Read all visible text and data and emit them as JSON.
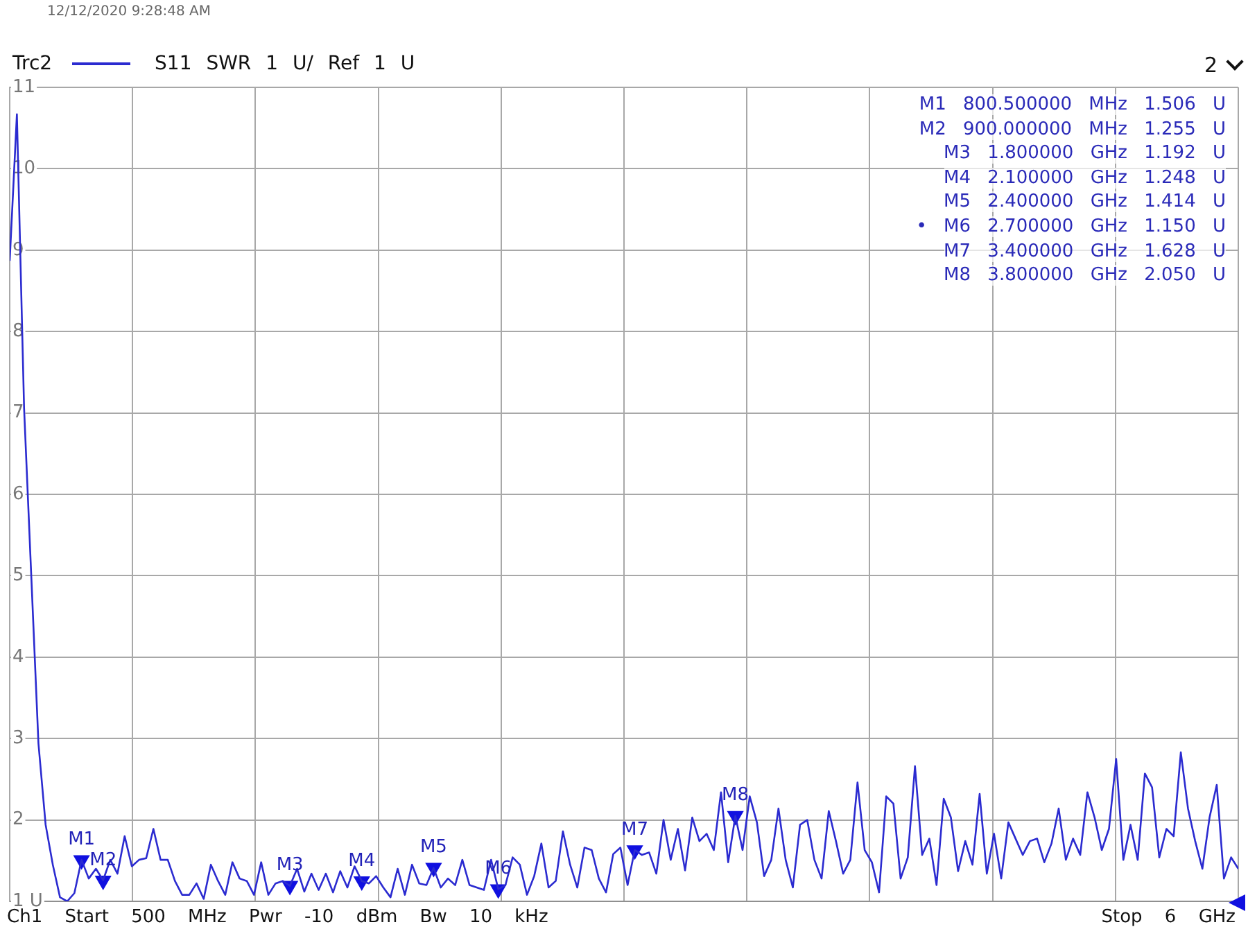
{
  "chart_data": {
    "type": "line",
    "subtitle": "S11 SWR 1 U/ Ref 1 U",
    "categories": [
      null,
      null,
      null,
      null,
      null,
      null,
      null,
      null,
      null,
      null,
      null,
      null,
      null,
      null,
      null,
      null,
      null,
      null,
      null,
      null,
      null,
      null,
      null,
      null,
      null,
      null,
      null,
      null,
      null,
      null,
      null,
      null,
      null,
      null,
      null,
      null,
      null,
      null,
      null,
      null,
      null,
      null,
      null,
      null,
      null,
      null,
      null,
      null,
      null,
      null,
      null,
      null,
      null,
      null,
      null,
      null,
      null,
      null,
      null,
      null,
      null,
      null,
      null,
      null,
      null,
      null,
      null,
      null,
      null,
      null,
      null,
      null,
      null,
      null,
      null,
      null,
      null,
      null,
      null,
      null,
      null,
      null,
      null,
      null,
      null,
      null,
      null,
      null,
      null,
      null,
      null,
      null,
      null,
      null,
      null,
      null,
      null,
      null,
      null,
      null,
      null,
      null,
      null,
      null,
      null,
      null,
      null,
      null,
      null,
      null,
      null,
      null,
      null,
      null,
      null,
      null,
      null,
      null,
      null,
      null,
      null,
      null,
      null,
      null,
      null,
      null,
      null,
      null,
      null,
      null,
      null,
      null,
      null,
      null,
      null,
      null,
      null,
      null,
      null,
      null,
      null,
      null,
      null,
      null,
      null,
      null,
      null,
      null,
      null,
      null,
      null,
      null,
      null,
      null,
      null,
      null,
      null,
      null,
      null,
      null,
      null,
      null,
      null,
      null,
      null,
      null,
      null,
      null,
      null,
      null,
      null,
      null
    ],
    "series": [
      {
        "name": "Trc2",
        "color": "#2b2bd0",
        "values": [
          8.87,
          10.67,
          7.06,
          5.0,
          2.94,
          1.94,
          1.45,
          1.05,
          1.0,
          1.1,
          1.51,
          1.28,
          1.4,
          1.26,
          1.51,
          1.34,
          1.8,
          1.43,
          1.51,
          1.53,
          1.89,
          1.51,
          1.51,
          1.25,
          1.08,
          1.08,
          1.22,
          1.03,
          1.45,
          1.25,
          1.08,
          1.48,
          1.28,
          1.25,
          1.08,
          1.48,
          1.08,
          1.22,
          1.25,
          1.19,
          1.4,
          1.12,
          1.34,
          1.14,
          1.34,
          1.11,
          1.37,
          1.17,
          1.43,
          1.25,
          1.22,
          1.31,
          1.17,
          1.05,
          1.4,
          1.08,
          1.45,
          1.22,
          1.2,
          1.41,
          1.17,
          1.28,
          1.2,
          1.51,
          1.2,
          1.17,
          1.14,
          1.51,
          1.15,
          1.2,
          1.54,
          1.45,
          1.08,
          1.31,
          1.71,
          1.17,
          1.25,
          1.86,
          1.45,
          1.17,
          1.66,
          1.63,
          1.28,
          1.11,
          1.58,
          1.66,
          1.2,
          1.63,
          1.57,
          1.6,
          1.34,
          2.0,
          1.51,
          1.89,
          1.38,
          2.03,
          1.74,
          1.83,
          1.63,
          2.34,
          1.48,
          2.05,
          1.63,
          2.29,
          1.97,
          1.31,
          1.51,
          2.14,
          1.51,
          1.17,
          1.94,
          2.0,
          1.51,
          1.28,
          2.11,
          1.74,
          1.34,
          1.51,
          2.46,
          1.63,
          1.48,
          1.11,
          2.29,
          2.2,
          1.28,
          1.54,
          2.66,
          1.57,
          1.77,
          1.2,
          2.26,
          2.03,
          1.37,
          1.74,
          1.45,
          2.32,
          1.34,
          1.83,
          1.28,
          1.97,
          1.77,
          1.57,
          1.74,
          1.77,
          1.48,
          1.71,
          2.14,
          1.51,
          1.77,
          1.57,
          2.34,
          2.03,
          1.63,
          1.89,
          2.75,
          1.51,
          1.94,
          1.51,
          2.57,
          2.4,
          1.54,
          1.89,
          1.8,
          2.83,
          2.14,
          1.74,
          1.4,
          2.03,
          2.43,
          1.28,
          1.54,
          1.4
        ]
      },
      {
        "type": "scatter",
        "marker": "triangle",
        "color": "#1010e0",
        "values": [
          null,
          null,
          null,
          null,
          null,
          null,
          null,
          null,
          null,
          null,
          1.506,
          null,
          null,
          1.255,
          null,
          null,
          null,
          null,
          null,
          null,
          null,
          null,
          null,
          null,
          null,
          null,
          null,
          null,
          null,
          null,
          null,
          null,
          null,
          null,
          null,
          null,
          null,
          null,
          null,
          1.192,
          null,
          null,
          null,
          null,
          null,
          null,
          null,
          null,
          null,
          1.248,
          null,
          null,
          null,
          null,
          null,
          null,
          null,
          null,
          null,
          1.414,
          null,
          null,
          null,
          null,
          null,
          null,
          null,
          null,
          1.15,
          null,
          null,
          null,
          null,
          null,
          null,
          null,
          null,
          null,
          null,
          null,
          null,
          null,
          null,
          null,
          null,
          null,
          null,
          1.628,
          null,
          null,
          null,
          null,
          null,
          null,
          null,
          null,
          null,
          null,
          null,
          null,
          null,
          2.05,
          null,
          null,
          null,
          null,
          null,
          null,
          null,
          null,
          null,
          null,
          null,
          null,
          null,
          null,
          null,
          null,
          null,
          null,
          null,
          null,
          null,
          null,
          null,
          null,
          null,
          null,
          null,
          null,
          null,
          null,
          null,
          null,
          null,
          null,
          null,
          null,
          null,
          null,
          null,
          null,
          null,
          null,
          null,
          null,
          null,
          null,
          null,
          null,
          null,
          null,
          null,
          null,
          null,
          null,
          null,
          null,
          null,
          null,
          null,
          null,
          null,
          null,
          null,
          null,
          null,
          null,
          null,
          null,
          null,
          null
        ]
      }
    ],
    "ylim": [
      1,
      11
    ],
    "yticks": [
      {
        "value": 1,
        "label": "1 U"
      },
      2,
      3,
      4,
      5,
      6,
      7,
      8,
      9,
      10,
      11
    ],
    "tick_labels": "y",
    "grid": true,
    "legend": "top left",
    "marker": "none",
    "line_style": "solid",
    "annotations": [
      "12/12/2020 9:28:48 AM",
      "2",
      "M1 800.500000 MHz 1.506 U",
      "M2 900.000000 MHz 1.255 U",
      "M3 1.800000 GHz 1.192 U",
      "M4 2.100000 GHz 1.248 U",
      "M5 2.400000 GHz 1.414 U",
      "• M6 2.700000 GHz 1.150 U",
      "M7 3.400000 GHz 1.628 U",
      "M8 3.800000 GHz 2.050 U",
      "Ch1 Start 500 MHz Pwr -10 dBm Bw 10 kHz",
      "Stop 6 GHz",
      {
        "text": "M1",
        "y": 1.506
      },
      {
        "text": "M2",
        "y": 1.255
      },
      {
        "text": "M3",
        "y": 1.192
      },
      {
        "text": "M4",
        "y": 1.248
      },
      {
        "text": "M5",
        "y": 1.414
      },
      {
        "text": "M6",
        "y": 1.15
      },
      {
        "text": "M7",
        "y": 1.628
      },
      {
        "text": "M8",
        "y": 2.05
      }
    ]
  }
}
